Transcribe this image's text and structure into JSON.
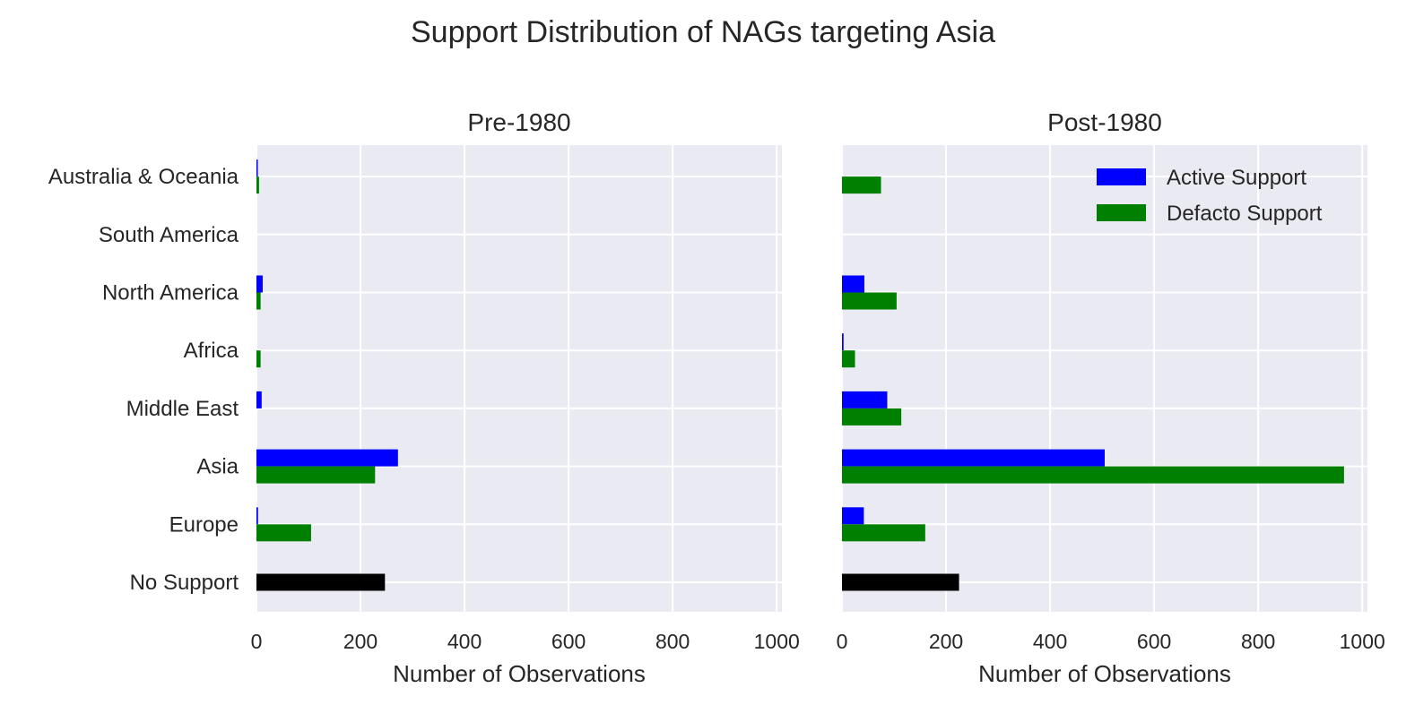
{
  "chart_data": {
    "type": "bar",
    "orientation": "horizontal",
    "title": "Support Distribution of NAGs targeting Asia",
    "categories": [
      "No Support",
      "Europe",
      "Asia",
      "Middle East",
      "Africa",
      "North America",
      "South America",
      "Australia & Oceania"
    ],
    "legend": {
      "placement": "top-right",
      "entries": [
        "Active Support",
        "Defacto Support"
      ]
    },
    "colors": {
      "active": "#0000ff",
      "defacto": "#008000",
      "no_support": "#000000",
      "plot_background": "#eaeaf2",
      "grid": "#ffffff"
    },
    "grid": true,
    "panels": [
      {
        "title": "Pre-1980",
        "xlabel": "Number of Observations",
        "xlim": [
          0,
          1010
        ],
        "xticks": [
          0,
          200,
          400,
          600,
          800,
          1000
        ],
        "show_category_labels": true,
        "no_support": 247,
        "series": [
          {
            "name": "Active Support",
            "values": [
              0,
              3,
              272,
              10,
              0,
              12,
              0,
              2
            ]
          },
          {
            "name": "Defacto Support",
            "values": [
              0,
              105,
              228,
              0,
              8,
              8,
              0,
              5
            ]
          }
        ]
      },
      {
        "title": "Post-1980",
        "xlabel": "Number of Observations",
        "xlim": [
          0,
          1010
        ],
        "xticks": [
          0,
          200,
          400,
          600,
          800,
          1000
        ],
        "show_category_labels": false,
        "no_support": 225,
        "series": [
          {
            "name": "Active Support",
            "values": [
              0,
              42,
              505,
              87,
              3,
              43,
              0,
              0
            ]
          },
          {
            "name": "Defacto Support",
            "values": [
              0,
              160,
              965,
              114,
              25,
              105,
              0,
              75
            ]
          }
        ]
      }
    ]
  }
}
